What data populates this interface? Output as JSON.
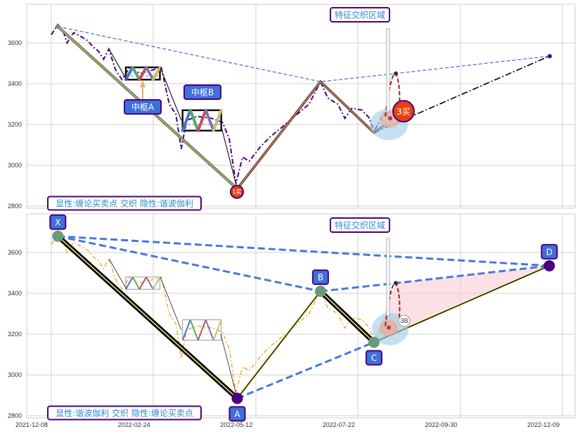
{
  "chart_data": [
    {
      "type": "line",
      "panel": "top",
      "ylim": [
        2790,
        3790
      ],
      "yticks": [
        2800,
        3000,
        3200,
        3400,
        3600
      ],
      "xticks": [
        "2021-12-08",
        "2022-02-24",
        "2022-05-12",
        "2022-07-22",
        "2022-09-30",
        "2022-12-09"
      ],
      "grid": true,
      "price_color": "#4b0082",
      "price": [
        [
          "2021-12-08",
          3640
        ],
        [
          "2021-12-13",
          3690
        ],
        [
          "2021-12-17",
          3660
        ],
        [
          "2021-12-20",
          3600
        ],
        [
          "2021-12-25",
          3650
        ],
        [
          "2021-12-31",
          3630
        ],
        [
          "2022-01-05",
          3610
        ],
        [
          "2022-01-09",
          3580
        ],
        [
          "2022-01-13",
          3560
        ],
        [
          "2022-01-17",
          3520
        ],
        [
          "2022-01-21",
          3570
        ],
        [
          "2022-01-26",
          3470
        ],
        [
          "2022-01-31",
          3420
        ],
        [
          "2022-02-06",
          3480
        ],
        [
          "2022-02-14",
          3450
        ],
        [
          "2022-02-25",
          3470
        ],
        [
          "2022-03-02",
          3480
        ],
        [
          "2022-03-08",
          3300
        ],
        [
          "2022-03-13",
          3250
        ],
        [
          "2022-03-17",
          3080
        ],
        [
          "2022-03-21",
          3220
        ],
        [
          "2022-03-29",
          3240
        ],
        [
          "2022-04-09",
          3230
        ],
        [
          "2022-04-17",
          3210
        ],
        [
          "2022-04-22",
          3130
        ],
        [
          "2022-04-27",
          2910
        ],
        [
          "2022-05-02",
          3040
        ],
        [
          "2022-05-07",
          3020
        ],
        [
          "2022-05-15",
          3090
        ],
        [
          "2022-05-22",
          3140
        ],
        [
          "2022-05-29",
          3180
        ],
        [
          "2022-06-08",
          3240
        ],
        [
          "2022-06-18",
          3300
        ],
        [
          "2022-06-26",
          3410
        ],
        [
          "2022-07-01",
          3330
        ],
        [
          "2022-07-08",
          3300
        ],
        [
          "2022-07-13",
          3230
        ],
        [
          "2022-07-18",
          3280
        ],
        [
          "2022-07-25",
          3270
        ],
        [
          "2022-07-30",
          3230
        ],
        [
          "2022-08-02",
          3165
        ],
        [
          "2022-08-09",
          3260
        ],
        [
          "2022-08-12",
          3240
        ]
      ],
      "pivots": {
        "X": [
          "2021-12-13",
          3680
        ],
        "A": [
          "2022-04-28",
          2885
        ],
        "B": [
          "2022-06-26",
          3410
        ],
        "C": [
          "2022-08-02",
          3160
        ],
        "third_buy_peak": [
          "2022-08-17",
          3450
        ],
        "D": [
          "2022-11-30",
          3535
        ]
      },
      "zhongshu": [
        {
          "label": "中枢A",
          "start": "2022-02-03",
          "end": "2022-03-01",
          "low": 3420,
          "high": 3480
        },
        {
          "label": "中枢B",
          "start": "2022-03-18",
          "end": "2022-04-16",
          "low": 3170,
          "high": 3270
        }
      ],
      "annotations": {
        "region_label": "特征交织区域",
        "first_buy": "1买",
        "third_buy": "3买",
        "legend_text": "显性:缠论买卖点 交织 隐性:谐波伽利"
      }
    },
    {
      "type": "line",
      "panel": "bottom",
      "ylim": [
        2790,
        3790
      ],
      "yticks": [
        2800,
        3000,
        3200,
        3400,
        3600
      ],
      "xticks": [
        "2021-12-08",
        "2022-02-24",
        "2022-05-12",
        "2022-07-22",
        "2022-09-30",
        "2022-12-09"
      ],
      "grid": true,
      "price_color": "#f0b030",
      "harmonic_points": [
        "X",
        "A",
        "B",
        "C",
        "D"
      ],
      "annotations": {
        "region_label": "特征交织区域",
        "third_buy": "3B",
        "legend_text": "显性:谐波伽利 交织 隐性:缠论买卖点"
      }
    }
  ],
  "colors": {
    "label_fill": "#3f6fd8",
    "label_border": "#4b0082",
    "buy_point": "#e8400c",
    "dashed": "#4a78d8",
    "note_text": "#2e8bc9"
  }
}
